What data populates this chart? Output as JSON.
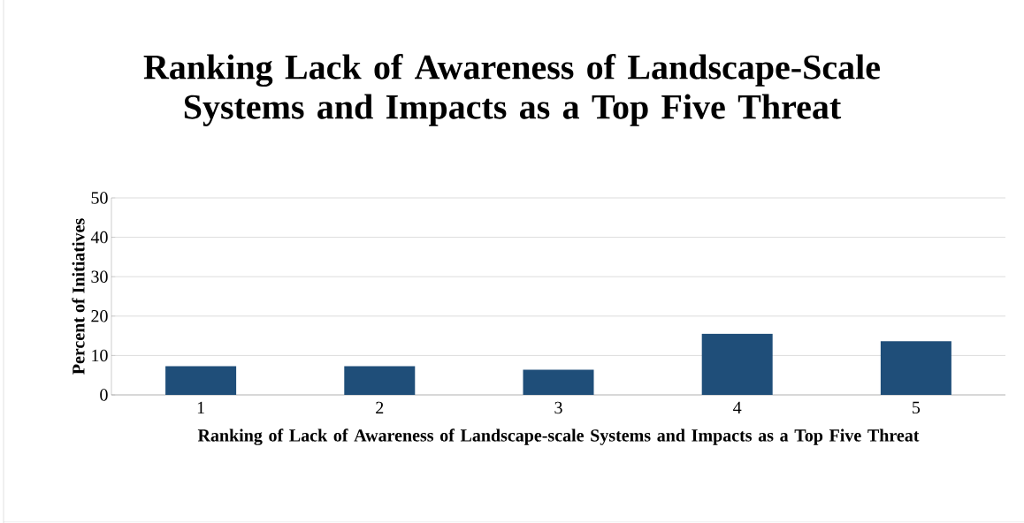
{
  "chart_data": {
    "type": "bar",
    "title": "Ranking Lack of Awareness of Landscape-Scale Systems and Impacts as a Top Five Threat",
    "xlabel": "Ranking of Lack of Awareness of Landscape-scale Systems and Impacts as a Top Five Threat",
    "ylabel": "Percent of Initiatives",
    "categories": [
      "1",
      "2",
      "3",
      "4",
      "5"
    ],
    "values": [
      7.3,
      7.3,
      6.4,
      15.5,
      13.6
    ],
    "color": "#1f4e79",
    "ylim": [
      0,
      50
    ],
    "yticks": [
      0,
      10,
      20,
      30,
      40,
      50
    ],
    "grid": "y"
  }
}
